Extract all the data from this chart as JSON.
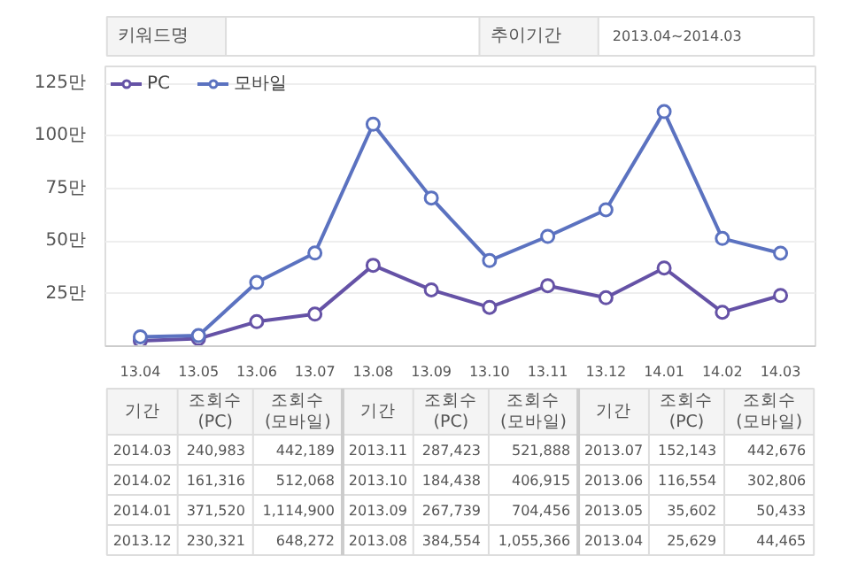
{
  "chart_data": {
    "type": "line",
    "categories": [
      "13.04",
      "13.05",
      "13.06",
      "13.07",
      "13.08",
      "13.09",
      "13.10",
      "13.11",
      "13.12",
      "14.01",
      "14.02",
      "14.03"
    ],
    "series": [
      {
        "name": "PC",
        "color": "#6552a6",
        "values": [
          2.5629,
          3.5602,
          11.6554,
          15.2143,
          38.4554,
          26.7739,
          18.4438,
          28.7423,
          23.0321,
          37.152,
          16.1316,
          24.0983
        ]
      },
      {
        "name": "모바일",
        "color": "#5b72c0",
        "values": [
          4.4465,
          5.0433,
          30.2806,
          44.2676,
          105.5366,
          70.4456,
          40.6915,
          52.1888,
          64.8272,
          111.49,
          51.2068,
          44.2189
        ]
      }
    ],
    "ylim": [
      0,
      133
    ],
    "yticks": [
      {
        "value": 25,
        "label": "25만"
      },
      {
        "value": 50,
        "label": "50만"
      },
      {
        "value": 75,
        "label": "75만"
      },
      {
        "value": 100,
        "label": "100만"
      },
      {
        "value": 125,
        "label": "125만"
      }
    ],
    "grid": "y",
    "legend": "top left",
    "marker": "circle",
    "line_style": "solid",
    "annotations": [
      "키워드명",
      "추이기간",
      "2013.04~2014.03",
      "기간",
      "조회수 (PC)",
      "조회수 (모바일)",
      "2014.03",
      "240,983",
      "442,189",
      "2014.02",
      "161,316",
      "512,068",
      "2014.01",
      "371,520",
      "1,114,900",
      "2013.12",
      "230,321",
      "648,272",
      "2013.11",
      "287,423",
      "521,888",
      "2013.10",
      "184,438",
      "406,915",
      "2013.09",
      "267,739",
      "704,456",
      "2013.08",
      "384,554",
      "1,055,366",
      "2013.07",
      "152,143",
      "442,676",
      "2013.06",
      "116,554",
      "302,806",
      "2013.05",
      "35,602",
      "50,433",
      "2013.04",
      "25,629",
      "44,465"
    ]
  }
}
